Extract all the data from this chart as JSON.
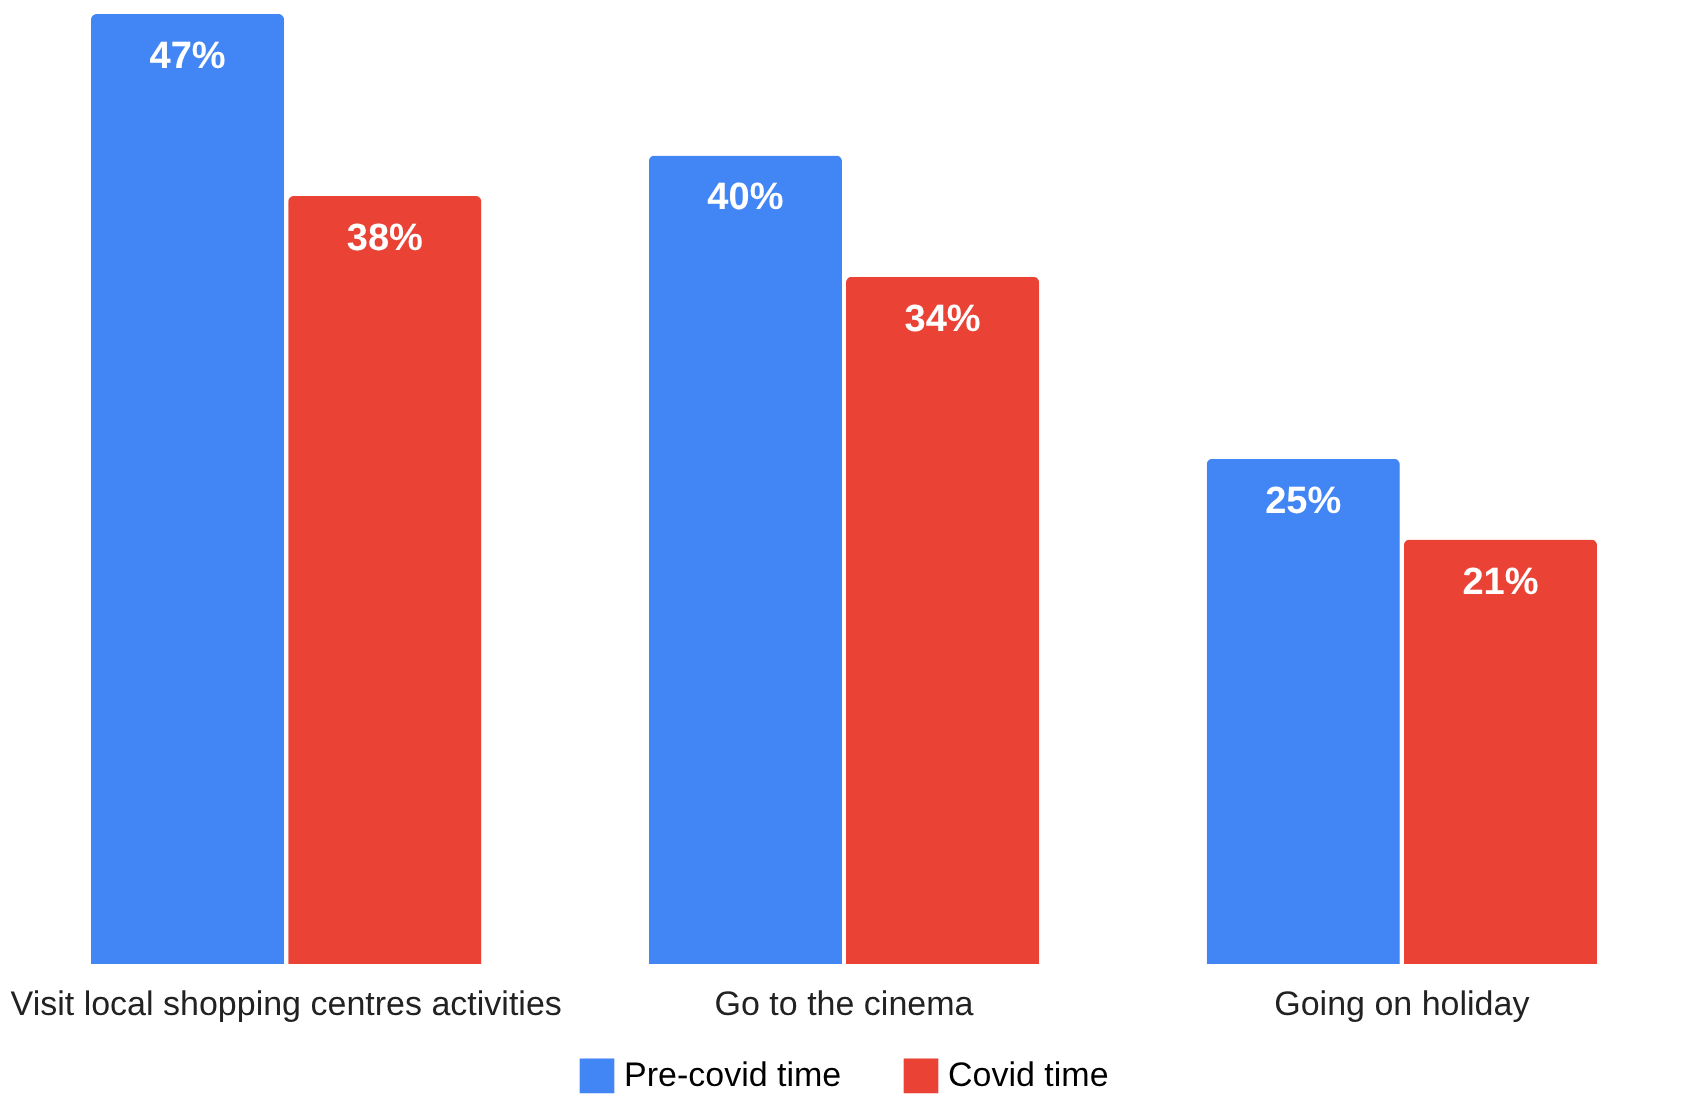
{
  "chart_data": {
    "type": "bar",
    "categories": [
      "Visit local shopping centres activities",
      "Go to the cinema",
      "Going on holiday"
    ],
    "series": [
      {
        "name": "Pre-covid time",
        "color": "#4285f4",
        "values": [
          47,
          40,
          25
        ],
        "value_labels": [
          "47%",
          "40%",
          "25%"
        ]
      },
      {
        "name": "Covid time",
        "color": "#ea4335",
        "values": [
          38,
          34,
          21
        ],
        "value_labels": [
          "38%",
          "34%",
          "21%"
        ]
      }
    ],
    "legend": "bottom"
  }
}
